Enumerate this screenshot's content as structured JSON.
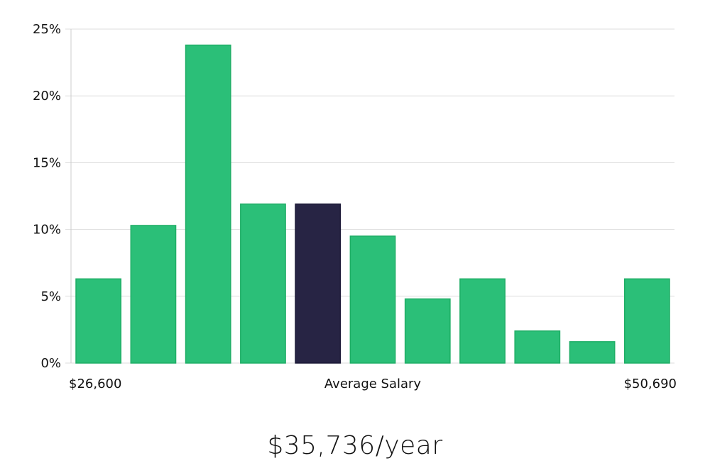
{
  "chart_data": {
    "type": "bar",
    "title": "",
    "xlabel": "Average Salary",
    "ylabel": "",
    "x_range_labels": {
      "min": "$26,600",
      "max": "$50,690"
    },
    "values": [
      6.3,
      10.3,
      23.8,
      11.9,
      11.9,
      9.5,
      4.8,
      6.3,
      2.4,
      1.6,
      6.3
    ],
    "highlight_index": 4,
    "ylim": [
      0,
      25
    ],
    "yticks": [
      0,
      5,
      10,
      15,
      20,
      25
    ],
    "ytick_labels": [
      "0%",
      "5%",
      "10%",
      "15%",
      "20%",
      "25%"
    ],
    "grid": true,
    "colors": {
      "bar": "#2bbf78",
      "bar_border": "#1fae66",
      "highlight": "#272444",
      "highlight_border": "#1b1836",
      "grid": "#dddddd",
      "axis": "#cccccc"
    }
  },
  "summary": {
    "salary_text": "$35,736/year"
  }
}
